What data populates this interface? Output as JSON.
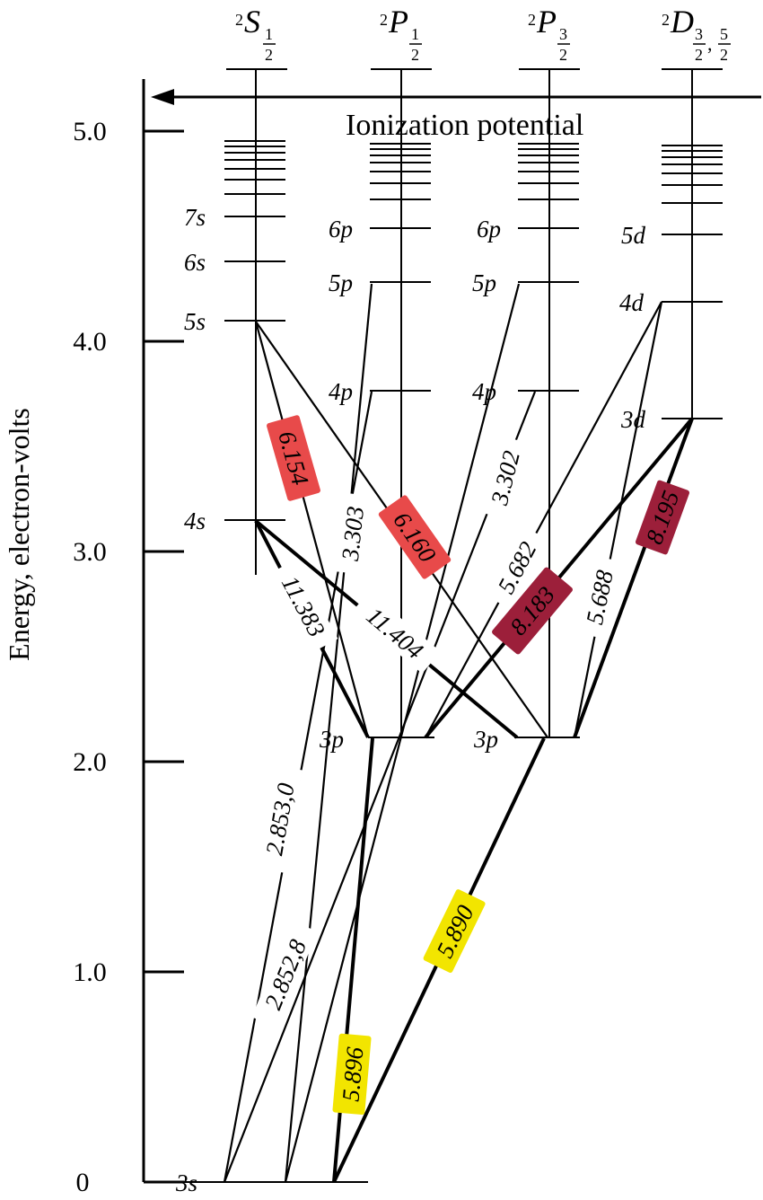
{
  "axis": {
    "ylabel": "Energy, electron-volts",
    "ticks": [
      {
        "value": 0,
        "label": "0"
      },
      {
        "value": 1,
        "label": "1.0"
      },
      {
        "value": 2,
        "label": "2.0"
      },
      {
        "value": 3,
        "label": "3.0"
      },
      {
        "value": 4,
        "label": "4.0"
      },
      {
        "value": 5,
        "label": "5.0"
      }
    ]
  },
  "ionization_label": "Ionization potential",
  "columns": [
    {
      "key": "S",
      "letter": "S",
      "sub": "1/2"
    },
    {
      "key": "P1",
      "letter": "P",
      "sub": "1/2"
    },
    {
      "key": "P3",
      "letter": "P",
      "sub": "3/2"
    },
    {
      "key": "D",
      "letter": "D",
      "sub": "3/2, 5/2"
    }
  ],
  "levels": [
    {
      "label": "3s",
      "column": "S",
      "energy": 0
    },
    {
      "label": "4s",
      "column": "S",
      "energy": 3.19
    },
    {
      "label": "5s",
      "column": "S",
      "energy": 4.12
    },
    {
      "label": "6s",
      "column": "S",
      "energy": 4.4
    },
    {
      "label": "7s",
      "column": "S",
      "energy": 4.61
    },
    {
      "label": "3p",
      "column": "P1",
      "energy": 2.1
    },
    {
      "label": "4p",
      "column": "P1",
      "energy": 3.75
    },
    {
      "label": "5p",
      "column": "P1",
      "energy": 4.35
    },
    {
      "label": "6p",
      "column": "P1",
      "energy": 4.62
    },
    {
      "label": "3p",
      "column": "P3",
      "energy": 2.1
    },
    {
      "label": "4p",
      "column": "P3",
      "energy": 3.75
    },
    {
      "label": "5p",
      "column": "P3",
      "energy": 4.35
    },
    {
      "label": "6p",
      "column": "P3",
      "energy": 4.62
    },
    {
      "label": "3d",
      "column": "D",
      "energy": 3.62
    },
    {
      "label": "4d",
      "column": "D",
      "energy": 4.29
    },
    {
      "label": "5d",
      "column": "D",
      "energy": 4.59
    }
  ],
  "transitions": [
    {
      "wavelength": "5.890",
      "highlight": "#f2e500"
    },
    {
      "wavelength": "5.896",
      "highlight": "#f2e500"
    },
    {
      "wavelength": "6.154",
      "highlight": "#e84a4a"
    },
    {
      "wavelength": "6.160",
      "highlight": "#e84a4a"
    },
    {
      "wavelength": "8.183",
      "highlight": "#9c1f3a"
    },
    {
      "wavelength": "8.195",
      "highlight": "#9c1f3a"
    },
    {
      "wavelength": "11.383",
      "highlight": ""
    },
    {
      "wavelength": "11.404",
      "highlight": ""
    },
    {
      "wavelength": "3.303",
      "highlight": ""
    },
    {
      "wavelength": "3.302",
      "highlight": ""
    },
    {
      "wavelength": "5.682",
      "highlight": ""
    },
    {
      "wavelength": "5.688",
      "highlight": ""
    },
    {
      "wavelength": "2.853,0",
      "highlight": ""
    },
    {
      "wavelength": "2.852,8",
      "highlight": ""
    }
  ]
}
